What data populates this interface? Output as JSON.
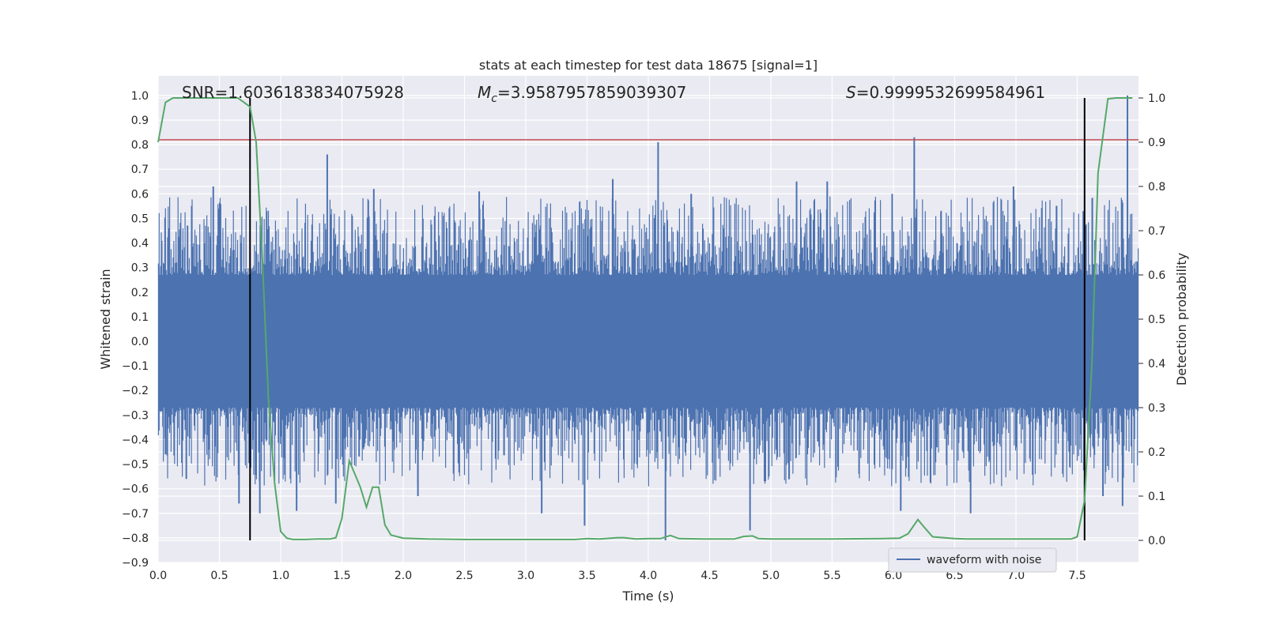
{
  "chart_data": {
    "type": "line",
    "title": "stats at each timestep for test data 18675 [signal=1]",
    "xlabel": "Time (s)",
    "ylabel": "Whitened strain",
    "y2label": "Detection probability",
    "xlim": [
      0.0,
      8.0
    ],
    "ylim": [
      -0.9,
      1.08
    ],
    "y2lim": [
      -0.05,
      1.05
    ],
    "x_ticks": [
      0.0,
      0.5,
      1.0,
      1.5,
      2.0,
      2.5,
      3.0,
      3.5,
      4.0,
      4.5,
      5.0,
      5.5,
      6.0,
      6.5,
      7.0,
      7.5
    ],
    "x_tick_labels": [
      "0.0",
      "0.5",
      "1.0",
      "1.5",
      "2.0",
      "2.5",
      "3.0",
      "3.5",
      "4.0",
      "4.5",
      "5.0",
      "5.5",
      "6.0",
      "6.5",
      "7.0",
      "7.5"
    ],
    "y_ticks": [
      -0.9,
      -0.8,
      -0.7,
      -0.6,
      -0.5,
      -0.4,
      -0.3,
      -0.2,
      -0.1,
      0.0,
      0.1,
      0.2,
      0.3,
      0.4,
      0.5,
      0.6,
      0.7,
      0.8,
      0.9,
      1.0
    ],
    "y_tick_labels": [
      "−0.9",
      "−0.8",
      "−0.7",
      "−0.6",
      "−0.5",
      "−0.4",
      "−0.3",
      "−0.2",
      "−0.1",
      "0.0",
      "0.1",
      "0.2",
      "0.3",
      "0.4",
      "0.5",
      "0.6",
      "0.7",
      "0.8",
      "0.9",
      "1.0"
    ],
    "y2_ticks": [
      0.0,
      0.1,
      0.2,
      0.3,
      0.4,
      0.5,
      0.6,
      0.7,
      0.8,
      0.9,
      1.0
    ],
    "y2_tick_labels": [
      "0.0",
      "0.1",
      "0.2",
      "0.3",
      "0.4",
      "0.5",
      "0.6",
      "0.7",
      "0.8",
      "0.9",
      "1.0"
    ],
    "grid": true,
    "legend": {
      "placement": "lower-right",
      "entries": [
        "waveform with noise"
      ]
    },
    "annotations": {
      "snr": "SNR=1.6036183834075928",
      "mc_symbol": "M",
      "mc_sub": "c",
      "mc_value": "=3.9587957859039307",
      "s_symbol": "S",
      "s_value": "=0.9999532699584961"
    },
    "threshold_line": {
      "y": 0.82,
      "color": "#c44e52"
    },
    "vertical_markers": [
      0.75,
      7.56
    ],
    "waveform": {
      "name": "waveform with noise",
      "color": "#4c72b0",
      "envelope_upper": 0.27,
      "envelope_lower": -0.27,
      "notable_peaks": [
        {
          "x": 0.06,
          "y": -0.46
        },
        {
          "x": 0.23,
          "y": -0.56
        },
        {
          "x": 0.45,
          "y": 0.63
        },
        {
          "x": 0.66,
          "y": -0.66
        },
        {
          "x": 0.83,
          "y": -0.7
        },
        {
          "x": 1.13,
          "y": -0.69
        },
        {
          "x": 1.38,
          "y": 0.76
        },
        {
          "x": 1.45,
          "y": -0.66
        },
        {
          "x": 1.76,
          "y": 0.62
        },
        {
          "x": 2.12,
          "y": -0.63
        },
        {
          "x": 2.62,
          "y": 0.61
        },
        {
          "x": 3.13,
          "y": -0.7
        },
        {
          "x": 3.48,
          "y": -0.75
        },
        {
          "x": 3.71,
          "y": 0.66
        },
        {
          "x": 4.08,
          "y": 0.81
        },
        {
          "x": 4.14,
          "y": -0.81
        },
        {
          "x": 4.35,
          "y": 0.6
        },
        {
          "x": 4.83,
          "y": -0.77
        },
        {
          "x": 5.21,
          "y": 0.65
        },
        {
          "x": 5.46,
          "y": 0.65
        },
        {
          "x": 5.99,
          "y": 0.6
        },
        {
          "x": 6.06,
          "y": -0.69
        },
        {
          "x": 6.17,
          "y": 0.83
        },
        {
          "x": 6.63,
          "y": -0.7
        },
        {
          "x": 6.98,
          "y": 0.63
        },
        {
          "x": 7.55,
          "y": 0.53
        },
        {
          "x": 7.71,
          "y": -0.63
        },
        {
          "x": 7.87,
          "y": -0.67
        },
        {
          "x": 7.91,
          "y": 1.0
        }
      ]
    },
    "detection_probability": {
      "color": "#55a868",
      "x": [
        0.0,
        0.06,
        0.12,
        0.3,
        0.5,
        0.65,
        0.7,
        0.75,
        0.8,
        0.85,
        0.9,
        0.95,
        1.0,
        1.05,
        1.1,
        1.2,
        1.3,
        1.4,
        1.45,
        1.5,
        1.56,
        1.65,
        1.7,
        1.75,
        1.8,
        1.85,
        1.9,
        2.0,
        2.2,
        2.5,
        3.0,
        3.4,
        3.5,
        3.6,
        3.75,
        3.8,
        3.9,
        4.0,
        4.1,
        4.18,
        4.25,
        4.5,
        4.7,
        4.78,
        4.85,
        4.9,
        5.0,
        5.5,
        5.9,
        6.05,
        6.12,
        6.2,
        6.25,
        6.32,
        6.5,
        6.6,
        7.0,
        7.45,
        7.5,
        7.56,
        7.62,
        7.67,
        7.75,
        7.82,
        7.95
      ],
      "y": [
        0.9,
        0.99,
        1.0,
        1.0,
        1.0,
        1.0,
        0.99,
        0.98,
        0.9,
        0.64,
        0.32,
        0.13,
        0.02,
        0.005,
        0.002,
        0.002,
        0.003,
        0.003,
        0.006,
        0.05,
        0.18,
        0.12,
        0.075,
        0.12,
        0.12,
        0.035,
        0.012,
        0.005,
        0.003,
        0.002,
        0.002,
        0.002,
        0.004,
        0.003,
        0.006,
        0.006,
        0.003,
        0.004,
        0.004,
        0.011,
        0.004,
        0.003,
        0.003,
        0.009,
        0.01,
        0.004,
        0.003,
        0.003,
        0.004,
        0.005,
        0.015,
        0.047,
        0.03,
        0.008,
        0.004,
        0.003,
        0.003,
        0.003,
        0.008,
        0.09,
        0.4,
        0.83,
        0.998,
        1.0,
        1.0
      ]
    },
    "legend_line_color": "#4c72b0"
  }
}
